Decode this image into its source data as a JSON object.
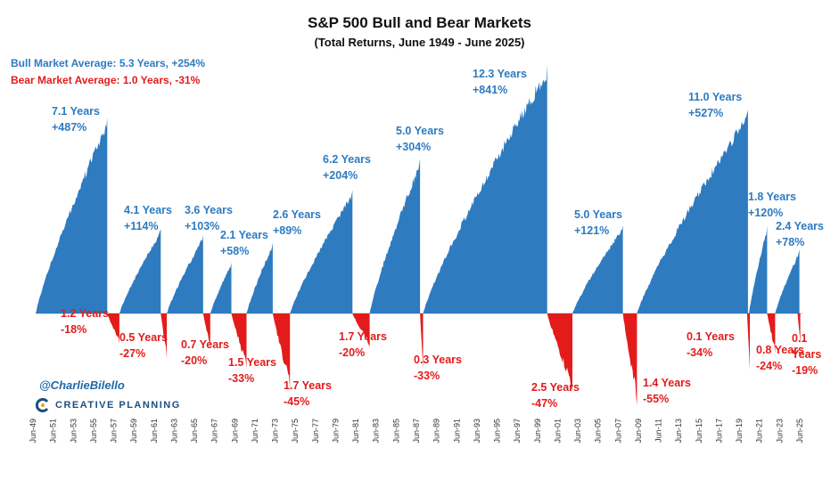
{
  "title": "S&P 500 Bull and Bear Markets",
  "subtitle": "(Total Returns, June 1949 - June 2025)",
  "bull_avg_label": "Bull Market Average: 5.3 Years, +254%",
  "bear_avg_label": "Bear Market Average: 1.0 Years, -31%",
  "credit": "@CharlieBilello",
  "brand": "CREATIVE PLANNING",
  "colors": {
    "bull": "#2e7bc0",
    "bear": "#e31b1b",
    "label_bull": "#2e7bc0",
    "label_bear": "#e31b1b"
  },
  "chart_data": {
    "type": "area",
    "title": "S&P 500 Bull and Bear Markets",
    "subtitle": "(Total Returns, June 1949 - June 2025)",
    "x_tick_labels": [
      "Jun-49",
      "Jun-51",
      "Jun-53",
      "Jun-55",
      "Jun-57",
      "Jun-59",
      "Jun-61",
      "Jun-63",
      "Jun-65",
      "Jun-67",
      "Jun-69",
      "Jun-71",
      "Jun-73",
      "Jun-75",
      "Jun-77",
      "Jun-79",
      "Jun-81",
      "Jun-83",
      "Jun-85",
      "Jun-87",
      "Jun-89",
      "Jun-91",
      "Jun-93",
      "Jun-95",
      "Jun-97",
      "Jun-99",
      "Jun-01",
      "Jun-03",
      "Jun-05",
      "Jun-07",
      "Jun-09",
      "Jun-11",
      "Jun-13",
      "Jun-15",
      "Jun-17",
      "Jun-19",
      "Jun-21",
      "Jun-23",
      "Jun-25"
    ],
    "x_range": [
      1949.5,
      2025.5
    ],
    "grid": false,
    "legend": "none",
    "series": [
      {
        "name": "Bull",
        "values": [
          {
            "start": 1949.5,
            "end": 1956.6,
            "years": "7.1 Years",
            "return_pct": 487,
            "return": "+487%"
          },
          {
            "start": 1957.8,
            "end": 1961.9,
            "years": "4.1 Years",
            "return_pct": 114,
            "return": "+114%"
          },
          {
            "start": 1962.5,
            "end": 1966.1,
            "years": "3.6 Years",
            "return_pct": 103,
            "return": "+103%"
          },
          {
            "start": 1966.8,
            "end": 1968.9,
            "years": "2.1 Years",
            "return_pct": 58,
            "return": "+58%"
          },
          {
            "start": 1970.4,
            "end": 1973.0,
            "years": "2.6 Years",
            "return_pct": 89,
            "return": "+89%"
          },
          {
            "start": 1974.7,
            "end": 1980.9,
            "years": "6.2 Years",
            "return_pct": 204,
            "return": "+204%"
          },
          {
            "start": 1982.6,
            "end": 1987.6,
            "years": "5.0 Years",
            "return_pct": 304,
            "return": "+304%"
          },
          {
            "start": 1987.9,
            "end": 2000.2,
            "years": "12.3 Years",
            "return_pct": 841,
            "return": "+841%"
          },
          {
            "start": 2002.7,
            "end": 2007.7,
            "years": "5.0 Years",
            "return_pct": 121,
            "return": "+121%"
          },
          {
            "start": 2009.1,
            "end": 2020.1,
            "years": "11.0 Years",
            "return_pct": 527,
            "return": "+527%"
          },
          {
            "start": 2020.2,
            "end": 2022.0,
            "years": "1.8 Years",
            "return_pct": 120,
            "return": "+120%"
          },
          {
            "start": 2022.8,
            "end": 2025.2,
            "years": "2.4 Years",
            "return_pct": 78,
            "return": "+78%"
          }
        ]
      },
      {
        "name": "Bear",
        "values": [
          {
            "start": 1956.6,
            "end": 1957.8,
            "years": "1.2 Years",
            "return_pct": -18,
            "return": "-18%"
          },
          {
            "start": 1961.9,
            "end": 1962.5,
            "years": "0.5 Years",
            "return_pct": -27,
            "return": "-27%"
          },
          {
            "start": 1966.1,
            "end": 1966.8,
            "years": "0.7 Years",
            "return_pct": -20,
            "return": "-20%"
          },
          {
            "start": 1968.9,
            "end": 1970.4,
            "years": "1.5 Years",
            "return_pct": -33,
            "return": "-33%"
          },
          {
            "start": 1973.0,
            "end": 1974.7,
            "years": "1.7 Years",
            "return_pct": -45,
            "return": "-45%"
          },
          {
            "start": 1980.9,
            "end": 1982.6,
            "years": "1.7 Years",
            "return_pct": -20,
            "return": "-20%"
          },
          {
            "start": 1987.6,
            "end": 1987.9,
            "years": "0.3 Years",
            "return_pct": -33,
            "return": "-33%"
          },
          {
            "start": 2000.2,
            "end": 2002.7,
            "years": "2.5 Years",
            "return_pct": -47,
            "return": "-47%"
          },
          {
            "start": 2007.7,
            "end": 2009.1,
            "years": "1.4 Years",
            "return_pct": -55,
            "return": "-55%"
          },
          {
            "start": 2020.1,
            "end": 2020.2,
            "years": "0.1 Years",
            "return_pct": -34,
            "return": "-34%"
          },
          {
            "start": 2022.0,
            "end": 2022.8,
            "years": "0.8 Years",
            "return_pct": -24,
            "return": "-24%"
          },
          {
            "start": 2025.1,
            "end": 2025.2,
            "years": "0.1 Years",
            "return_pct": -19,
            "return": "-19%"
          }
        ]
      }
    ]
  }
}
